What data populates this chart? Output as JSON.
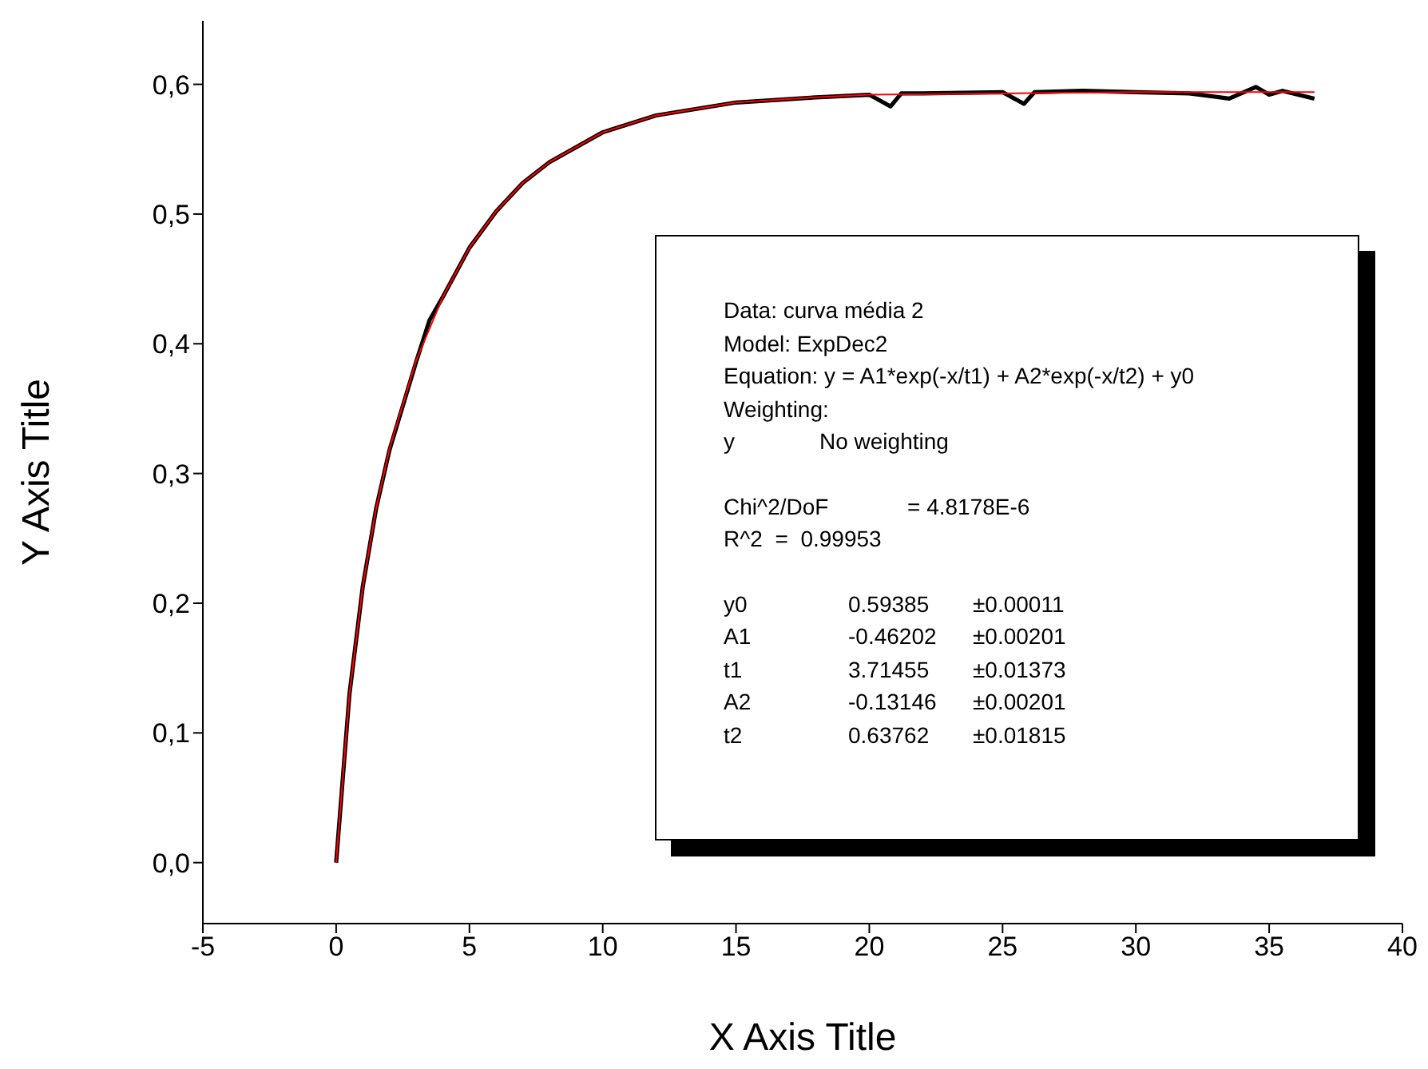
{
  "chart_data": {
    "type": "line",
    "xlabel": "X Axis Title",
    "ylabel": "Y Axis Title",
    "xlim": [
      -5,
      40
    ],
    "xticks": [
      -5,
      0,
      5,
      10,
      15,
      20,
      25,
      30,
      35,
      40
    ],
    "ylim": [
      -0.047,
      0.649
    ],
    "yticks": [
      {
        "value": 0,
        "label": "0,0"
      },
      {
        "value": 0.1,
        "label": "0,1"
      },
      {
        "value": 0.2,
        "label": "0,2"
      },
      {
        "value": 0.3,
        "label": "0,3"
      },
      {
        "value": 0.4,
        "label": "0,4"
      },
      {
        "value": 0.5,
        "label": "0,5"
      },
      {
        "value": 0.6,
        "label": "0,6"
      }
    ],
    "grid": false,
    "marker": "none",
    "line_style": "solid",
    "series": [
      {
        "color": "#000000",
        "x": [
          0,
          0.5,
          1,
          1.5,
          2,
          3,
          3.5,
          4,
          5,
          6,
          7,
          8,
          10,
          12,
          15,
          18,
          20,
          20.8,
          21.2,
          22,
          25,
          25.8,
          26.2,
          28,
          30,
          32,
          33.5,
          34.5,
          35,
          35.5,
          36.7
        ],
        "values": [
          0.0,
          0.13,
          0.213,
          0.273,
          0.318,
          0.386,
          0.418,
          0.436,
          0.474,
          0.502,
          0.524,
          0.54,
          0.563,
          0.576,
          0.586,
          0.59,
          0.592,
          0.583,
          0.593,
          0.593,
          0.594,
          0.585,
          0.594,
          0.595,
          0.594,
          0.593,
          0.589,
          0.598,
          0.592,
          0.595,
          0.589
        ]
      },
      {
        "color": "#ff0000",
        "x": [
          0,
          0.5,
          1,
          1.5,
          2,
          3,
          4,
          5,
          6,
          7,
          8,
          10,
          12,
          15,
          18,
          20,
          25,
          30,
          36.7
        ],
        "values": [
          0.0,
          0.13,
          0.213,
          0.273,
          0.319,
          0.387,
          0.436,
          0.474,
          0.502,
          0.524,
          0.54,
          0.563,
          0.576,
          0.586,
          0.59,
          0.592,
          0.593,
          0.594,
          0.594
        ]
      }
    ],
    "annotations": [
      "Data: curva média 2",
      "Model: ExpDec2",
      "Equation: y = A1*exp(-x/t1) + A2*exp(-x/t2) + y0",
      "Weighting:",
      "y\tNo weighting",
      "Chi^2/DoF\t= 4.8178E-6",
      "R^2  =  0.99953",
      "y0\t0.59385\t±0.00011",
      "A1\t-0.46202\t±0.00201",
      "t1\t3.71455\t±0.01373",
      "A2\t-0.13146\t±0.00201",
      "t2\t0.63762\t±0.01815"
    ]
  }
}
